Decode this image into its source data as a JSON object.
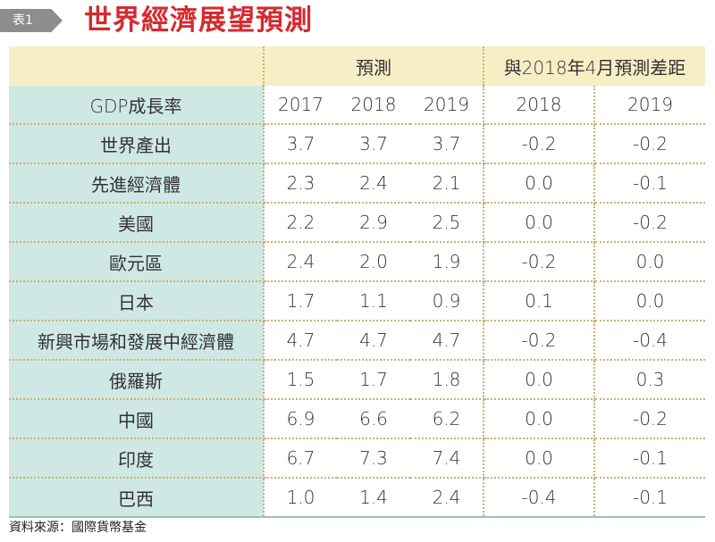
{
  "header": {
    "tag": "表1",
    "title": "世界經濟展望預測"
  },
  "table": {
    "group_headers": [
      "預測",
      "與2018年4月預測差距"
    ],
    "column_label": "GDP成長率",
    "years": [
      "2017",
      "2018",
      "2019",
      "2018",
      "2019"
    ],
    "rows": [
      {
        "name": "世界產出",
        "values": [
          "3.7",
          "3.7",
          "3.7",
          "-0.2",
          "-0.2"
        ]
      },
      {
        "name": "先進經濟體",
        "values": [
          "2.3",
          "2.4",
          "2.1",
          "0.0",
          "-0.1"
        ]
      },
      {
        "name": "美國",
        "values": [
          "2.2",
          "2.9",
          "2.5",
          "0.0",
          "-0.2"
        ]
      },
      {
        "name": "歐元區",
        "values": [
          "2.4",
          "2.0",
          "1.9",
          "-0.2",
          "0.0"
        ]
      },
      {
        "name": "日本",
        "values": [
          "1.7",
          "1.1",
          "0.9",
          "0.1",
          "0.0"
        ]
      },
      {
        "name": "新興市場和發展中經濟體",
        "values": [
          "4.7",
          "4.7",
          "4.7",
          "-0.2",
          "-0.4"
        ]
      },
      {
        "name": "俄羅斯",
        "values": [
          "1.5",
          "1.7",
          "1.8",
          "0.0",
          "0.3"
        ]
      },
      {
        "name": "中國",
        "values": [
          "6.9",
          "6.6",
          "6.2",
          "0.0",
          "-0.2"
        ]
      },
      {
        "name": "印度",
        "values": [
          "6.7",
          "7.3",
          "7.4",
          "0.0",
          "-0.1"
        ]
      },
      {
        "name": "巴西",
        "values": [
          "1.0",
          "1.4",
          "2.4",
          "-0.4",
          "-0.1"
        ]
      }
    ]
  },
  "source": "資料來源：國際貨幣基金"
}
